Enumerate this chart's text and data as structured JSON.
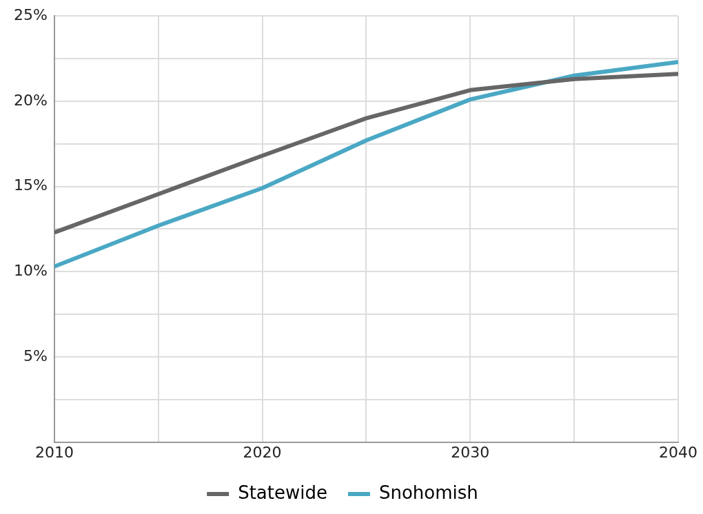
{
  "chart_data": {
    "type": "line",
    "x": [
      2010,
      2015,
      2020,
      2025,
      2030,
      2035,
      2040
    ],
    "series": [
      {
        "name": "Statewide",
        "color": "#666666",
        "values": [
          12.3,
          14.55,
          16.8,
          19.0,
          20.65,
          21.3,
          21.6
        ]
      },
      {
        "name": "Snohomish",
        "color": "#4aa8c4",
        "values": [
          10.3,
          12.7,
          14.9,
          17.7,
          20.1,
          21.5,
          22.3
        ]
      }
    ],
    "xlim": [
      2010,
      2040
    ],
    "xticks": [
      2010,
      {
        "value": 2015,
        "label": null
      },
      2020,
      {
        "value": 2025,
        "label": null
      },
      2030,
      {
        "value": 2035,
        "label": null
      },
      2040
    ],
    "ylim": [
      0,
      25
    ],
    "yticks": [
      {
        "value": 0,
        "label": null
      },
      {
        "value": 2.5,
        "label": null
      },
      {
        "value": 5,
        "label": "5%"
      },
      {
        "value": 7.5,
        "label": null
      },
      {
        "value": 10,
        "label": "10%"
      },
      {
        "value": 12.5,
        "label": null
      },
      {
        "value": 15,
        "label": "15%"
      },
      {
        "value": 17.5,
        "label": null
      },
      {
        "value": 20,
        "label": "20%"
      },
      {
        "value": 22.5,
        "label": null
      },
      {
        "value": 25,
        "label": "25%"
      }
    ],
    "grid": true,
    "legend": "bottom",
    "marker": "none",
    "line_style": "solid"
  }
}
